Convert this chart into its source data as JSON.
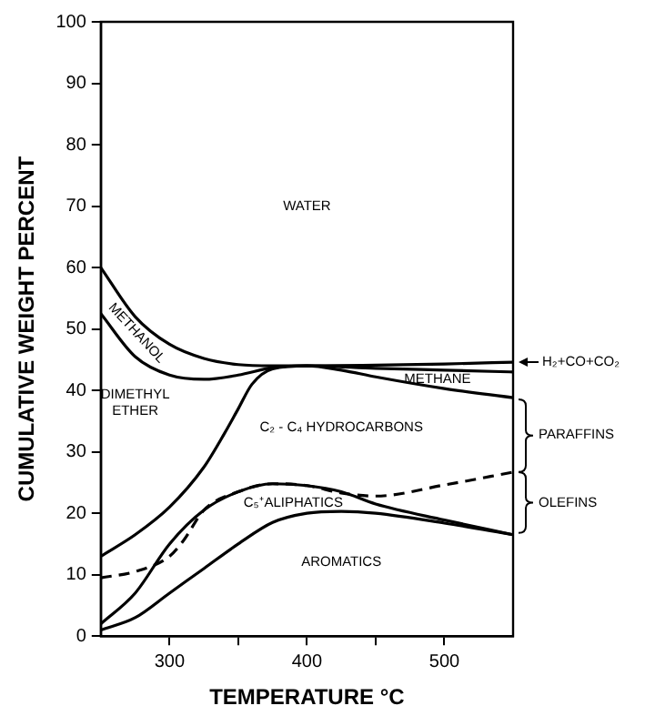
{
  "chart_data": {
    "type": "line",
    "xlabel": "TEMPERATURE °C",
    "ylabel": "CUMULATIVE WEIGHT PERCENT",
    "xlim": [
      250,
      550
    ],
    "xticks": [
      300,
      {
        "value": 350,
        "label": null
      },
      400,
      {
        "value": 450,
        "label": null
      },
      500
    ],
    "ylim": [
      0,
      100
    ],
    "yticks": [
      0,
      10,
      20,
      30,
      40,
      50,
      60,
      70,
      80,
      90,
      100
    ],
    "marker": "none",
    "legend": false,
    "series": [
      {
        "color": "#000000",
        "x": [
          250,
          275,
          300,
          325,
          350,
          375,
          400,
          425,
          450,
          500,
          550
        ],
        "values": [
          1,
          3,
          7,
          11,
          15,
          18.5,
          20,
          20.3,
          20,
          18.4,
          16.5
        ]
      },
      {
        "color": "#000000",
        "x": [
          250,
          275,
          300,
          325,
          350,
          375,
          400,
          425,
          450,
          500,
          550
        ],
        "values": [
          2,
          7,
          15,
          20.5,
          23.5,
          24.8,
          24.5,
          23.5,
          21.5,
          18.9,
          16.5
        ]
      },
      {
        "color": "#000000",
        "line_style": "dashed",
        "x": [
          250,
          275,
          300,
          310,
          325,
          350,
          375,
          400,
          425,
          450,
          500,
          550
        ],
        "values": [
          9.5,
          10.5,
          13,
          15.5,
          20.5,
          23.5,
          24.8,
          24.5,
          23.3,
          22.8,
          24.6,
          26.7
        ]
      },
      {
        "color": "#000000",
        "x": [
          250,
          275,
          300,
          325,
          340,
          350,
          360,
          375,
          400,
          425,
          450,
          500,
          550
        ],
        "values": [
          13,
          16.5,
          21,
          27.5,
          33,
          37,
          41,
          43.5,
          44,
          43.3,
          42.2,
          40.3,
          38.8
        ]
      },
      {
        "color": "#000000",
        "x": [
          250,
          275,
          300,
          325,
          350,
          375,
          400,
          450,
          500,
          550
        ],
        "values": [
          52.5,
          45.5,
          42.5,
          41.8,
          42.5,
          43.7,
          44,
          43.6,
          43.3,
          43
        ]
      },
      {
        "color": "#000000",
        "x": [
          250,
          275,
          300,
          325,
          350,
          375,
          400,
          450,
          500,
          550
        ],
        "values": [
          60,
          52,
          47.5,
          45.2,
          44.2,
          44,
          44,
          44.1,
          44.3,
          44.6
        ]
      }
    ],
    "annotations": [
      "WATER",
      "METHANOL",
      "DIMETHYL\nETHER",
      "C₂ - C₄ HYDROCARBONS",
      "METHANE",
      "C₅⁺ALIPHATICS",
      "AROMATICS",
      "H₂+CO+CO₂",
      "PARAFFINS",
      "OLEFINS"
    ]
  }
}
